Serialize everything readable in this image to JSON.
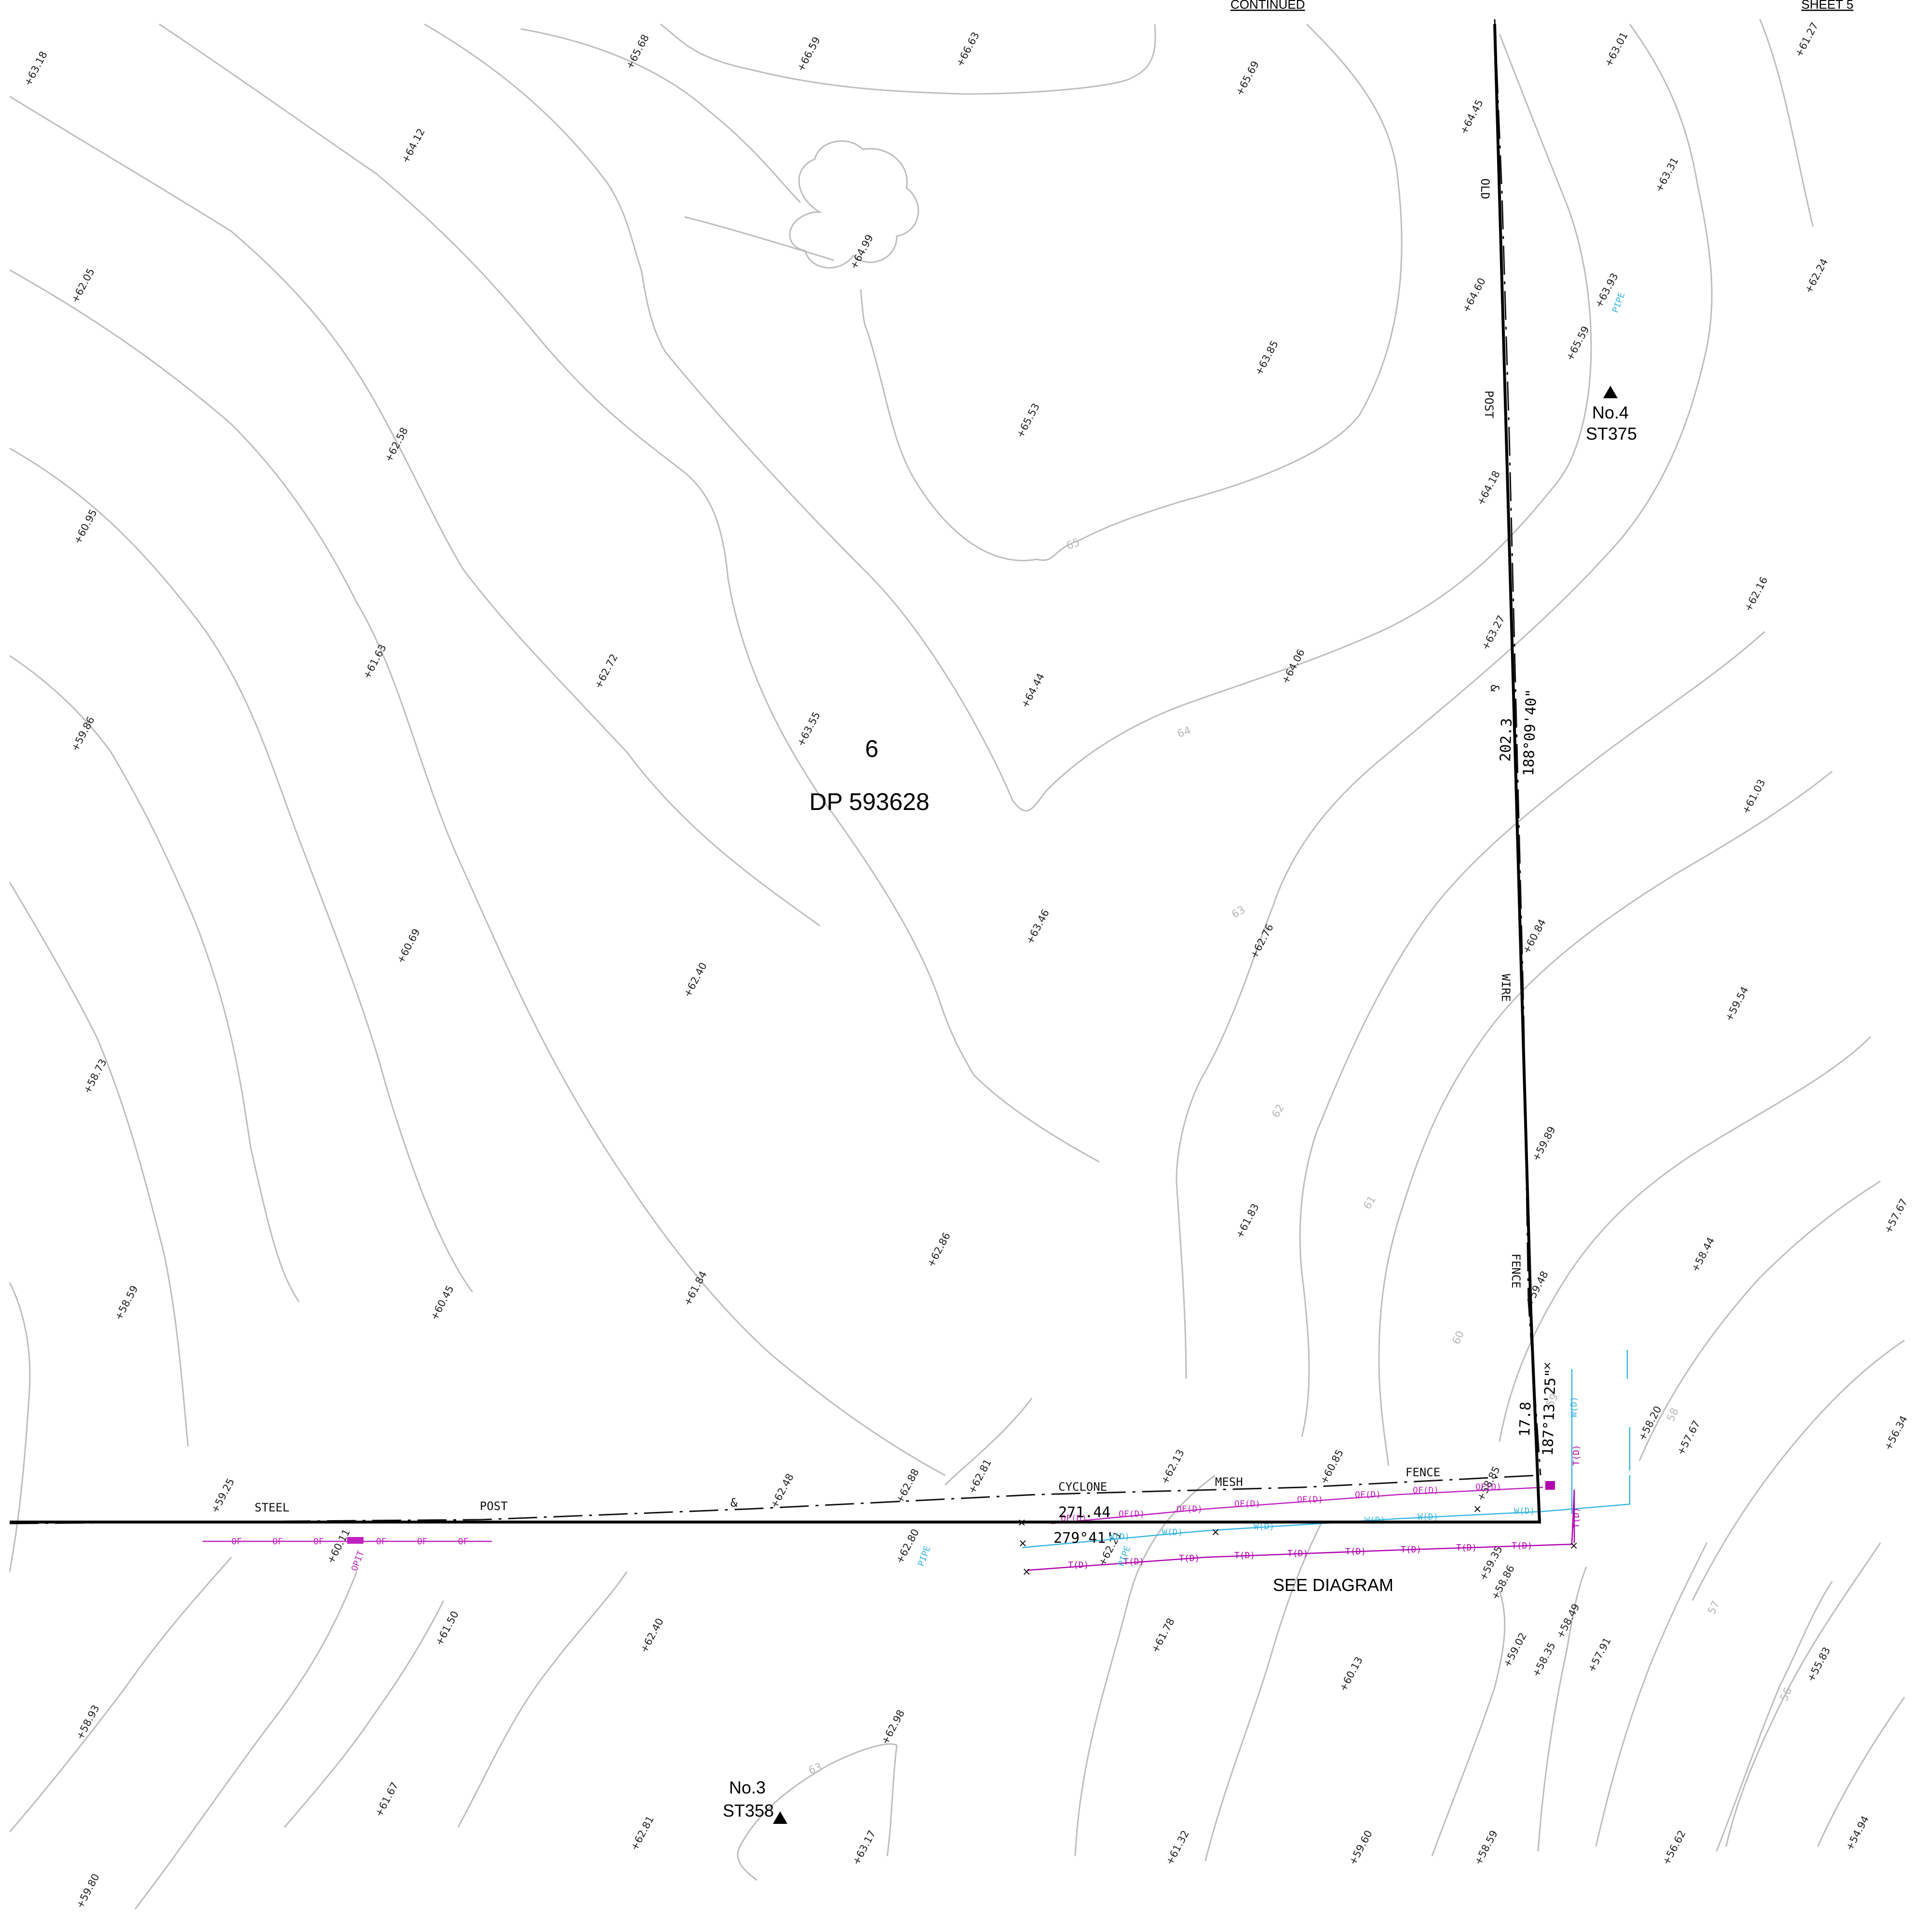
{
  "header": {
    "continued": "CONTINUED",
    "sheet": "SHEET 5"
  },
  "lot": {
    "number": "6",
    "plan": "DP 593628"
  },
  "boundary": {
    "east_distance": "202.3",
    "east_bearing": "188°09'40\"",
    "south_distance": "271.44",
    "south_bearing": "279°41'",
    "corner_distance": "17.8",
    "corner_bearing": "187°13'25\""
  },
  "fence_words": {
    "south": [
      "STEEL",
      "POST",
      "&",
      "CYCLONE",
      "MESH",
      "FENCE"
    ],
    "east": [
      "OLD",
      "POST",
      "&",
      "WIRE",
      "FENCE"
    ]
  },
  "stations": [
    {
      "name": "No.4",
      "code": "ST375"
    },
    {
      "name": "No.3",
      "code": "ST358"
    }
  ],
  "diagram_note": "SEE DIAGRAM",
  "contour_labels": [
    "65",
    "64",
    "63",
    "62",
    "61",
    "60",
    "59",
    "58",
    "57",
    "56",
    "63"
  ],
  "spot_levels": [
    "63.18",
    "66.59",
    "65.68",
    "66.63",
    "65.69",
    "64.45",
    "63.01",
    "61.27",
    "64.12",
    "64.99",
    "64.60",
    "63.31",
    "62.05",
    "63.85",
    "65.53",
    "65.59",
    "63.93",
    "62.24",
    "62.58",
    "64.18",
    "60.95",
    "63.27",
    "62.16",
    "61.63",
    "62.72",
    "63.55",
    "64.44",
    "64.06",
    "59.86",
    "61.03",
    "63.46",
    "62.76",
    "60.84",
    "60.69",
    "62.40",
    "59.54",
    "58.73",
    "59.89",
    "62.86",
    "61.83",
    "58.44",
    "57.67",
    "58.59",
    "60.45",
    "61.84",
    "59.48",
    "58.20",
    "57.67",
    "56.34",
    "59.25",
    "62.48",
    "62.88",
    "62.81",
    "62.13",
    "60.85",
    "58.85",
    "60.11",
    "62.80",
    "62.21",
    "59.35",
    "58.86",
    "61.50",
    "62.40",
    "61.78",
    "60.13",
    "59.02",
    "58.35",
    "58.49",
    "57.91",
    "55.83",
    "58.93",
    "61.67",
    "62.81",
    "62.98",
    "63.17",
    "61.32",
    "59.60",
    "58.59",
    "56.62",
    "54.94",
    "59.80"
  ],
  "utility_labels": {
    "overhead": "OF",
    "overhead_d": "OF(D)",
    "water_d": "W(D)",
    "telecom_d": "T(D)",
    "pipe": "PIPE",
    "opit": "OPIT"
  }
}
